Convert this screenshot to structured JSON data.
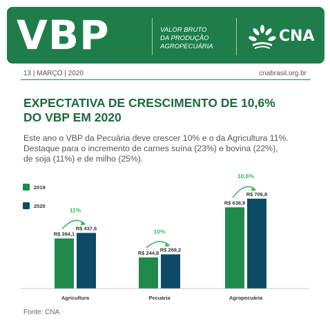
{
  "header": {
    "logo_text": "VBP",
    "tagline_lines": [
      "VALOR BRUTO",
      "DA PRODUÇÃO",
      "AGROPECUÁRIA"
    ],
    "brand": "CNA",
    "brand_icon": "cna-wheat-logo-icon",
    "color": "#1e7d4a"
  },
  "meta": {
    "date": "13 | MARÇO | 2020",
    "site": "cnabrasil.org.br"
  },
  "headline_lines": [
    "EXPECTATIVA DE CRESCIMENTO DE 10,6%",
    "DO VBP EM 2020"
  ],
  "body_lines": [
    "Este ano o VBP da Pecuária deve crescer 10% e o da Agricultura 11%.",
    "Destaque para o incremento de carnes suína (23%) e bovina (22%),",
    "de soja (11%) e de milho (25%)."
  ],
  "source": "Fonte: CNA",
  "chart_data": {
    "type": "bar",
    "categories": [
      "Agricultura",
      "Pecuária",
      "Agropecuária"
    ],
    "series": [
      {
        "name": "2019",
        "color": "#1f8a4c",
        "values": [
          394.1,
          244.8,
          638.9
        ],
        "labels": [
          "R$ 394,1",
          "R$ 244,8",
          "R$ 638,9"
        ]
      },
      {
        "name": "2020",
        "color": "#0d4a66",
        "values": [
          437.6,
          269.2,
          706.8
        ],
        "labels": [
          "R$ 437,6",
          "R$ 269,2",
          "R$ 706,8"
        ]
      }
    ],
    "growth_labels": [
      "11%",
      "10%",
      "10,6%"
    ],
    "growth_color": "#3fb860",
    "legend_position": "left",
    "ylim": [
      0,
      760
    ],
    "grid": false,
    "title": "",
    "xlabel": "",
    "ylabel": ""
  }
}
